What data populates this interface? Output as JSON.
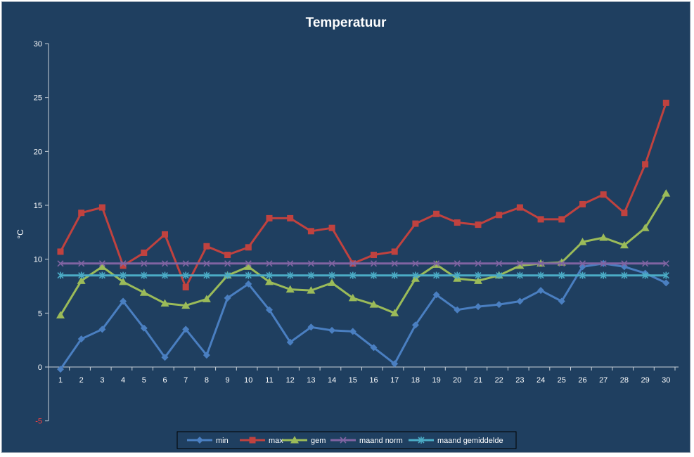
{
  "chart_data": {
    "type": "line",
    "title": "Temperatuur",
    "xlabel": "",
    "ylabel": "°C",
    "ylim": [
      -5,
      30
    ],
    "yticks": [
      -5,
      0,
      5,
      10,
      15,
      20,
      25,
      30
    ],
    "categories": [
      "1",
      "2",
      "3",
      "4",
      "5",
      "6",
      "7",
      "8",
      "9",
      "10",
      "11",
      "12",
      "13",
      "14",
      "15",
      "16",
      "17",
      "18",
      "19",
      "20",
      "21",
      "22",
      "23",
      "24",
      "25",
      "26",
      "27",
      "28",
      "29",
      "30"
    ],
    "grid": false,
    "legend": "bottom",
    "series": [
      {
        "name": "min",
        "color": "#4a7fc1",
        "marker": "diamond",
        "values": [
          -0.2,
          2.6,
          3.5,
          6.1,
          3.6,
          0.9,
          3.5,
          1.1,
          6.4,
          7.7,
          5.3,
          2.3,
          3.7,
          3.4,
          3.3,
          1.8,
          0.3,
          3.9,
          6.7,
          5.3,
          5.6,
          5.8,
          6.1,
          7.1,
          6.1,
          9.3,
          9.6,
          9.3,
          8.7,
          7.8
        ]
      },
      {
        "name": "max",
        "color": "#c0423f",
        "marker": "square",
        "values": [
          10.7,
          14.3,
          14.8,
          9.4,
          10.6,
          12.3,
          7.4,
          11.2,
          10.4,
          11.1,
          13.8,
          13.8,
          12.6,
          12.9,
          9.6,
          10.4,
          10.7,
          13.3,
          14.2,
          13.4,
          13.2,
          14.1,
          14.8,
          13.7,
          13.7,
          15.1,
          16.0,
          14.3,
          18.8,
          24.5
        ]
      },
      {
        "name": "gem",
        "color": "#9bbb59",
        "marker": "triangle",
        "values": [
          4.8,
          8.0,
          9.3,
          7.9,
          6.9,
          5.9,
          5.7,
          6.3,
          8.5,
          9.3,
          7.9,
          7.2,
          7.1,
          7.8,
          6.4,
          5.8,
          5.0,
          8.2,
          9.5,
          8.2,
          8.0,
          8.5,
          9.4,
          9.6,
          9.7,
          11.6,
          12.0,
          11.3,
          12.9,
          16.1
        ]
      },
      {
        "name": "maand norm",
        "color": "#8064a2",
        "marker": "x",
        "values": [
          9.6,
          9.6,
          9.6,
          9.6,
          9.6,
          9.6,
          9.6,
          9.6,
          9.6,
          9.6,
          9.6,
          9.6,
          9.6,
          9.6,
          9.6,
          9.6,
          9.6,
          9.6,
          9.6,
          9.6,
          9.6,
          9.6,
          9.6,
          9.6,
          9.6,
          9.6,
          9.6,
          9.6,
          9.6,
          9.6
        ]
      },
      {
        "name": "maand gemiddelde",
        "color": "#4bacc6",
        "marker": "star",
        "values": [
          8.5,
          8.5,
          8.5,
          8.5,
          8.5,
          8.5,
          8.5,
          8.5,
          8.5,
          8.5,
          8.5,
          8.5,
          8.5,
          8.5,
          8.5,
          8.5,
          8.5,
          8.5,
          8.5,
          8.5,
          8.5,
          8.5,
          8.5,
          8.5,
          8.5,
          8.5,
          8.5,
          8.5,
          8.5,
          8.5
        ]
      }
    ]
  }
}
